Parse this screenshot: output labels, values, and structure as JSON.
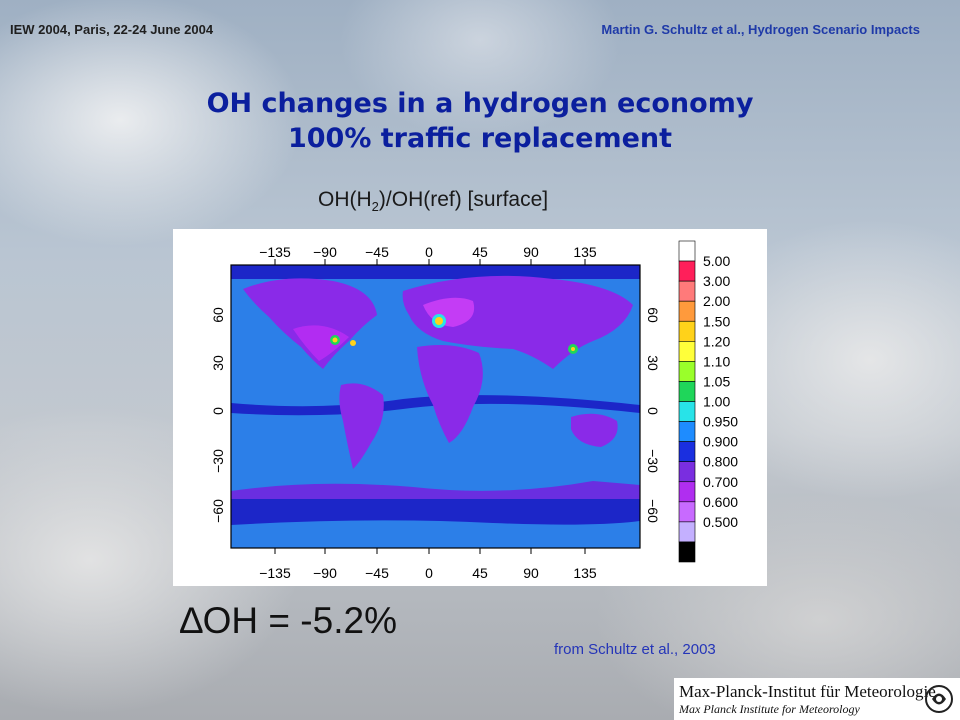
{
  "header": {
    "left": "IEW 2004, Paris, 22-24 June 2004",
    "right": "Martin G. Schultz et al., Hydrogen Scenario Impacts"
  },
  "title": {
    "line1": "OH changes in a hydrogen economy",
    "line2": "100% traffic replacement"
  },
  "subtitle": {
    "pre": "OH(H",
    "sub": "2",
    "post": ")/OH(ref)  [surface]"
  },
  "map": {
    "lon_ticks": [
      "−135",
      "−90",
      "−45",
      "0",
      "45",
      "90",
      "135"
    ],
    "lat_ticks_left": [
      "60",
      "30",
      "0",
      "−30",
      "−60"
    ],
    "lat_ticks_right": [
      "60",
      "30",
      "0",
      "−30",
      "−60"
    ]
  },
  "colorbar": {
    "labels": [
      "5.00",
      "3.00",
      "2.00",
      "1.50",
      "1.20",
      "1.10",
      "1.05",
      "1.00",
      "0.950",
      "0.900",
      "0.800",
      "0.700",
      "0.600",
      "0.500"
    ],
    "colors": [
      "#ffffff",
      "#ff1f5a",
      "#ff7a7a",
      "#ff9a3c",
      "#ffd21a",
      "#ffff3a",
      "#9aff2a",
      "#1fd65a",
      "#28e3e8",
      "#1e8cff",
      "#1a2fe0",
      "#7a2ee0",
      "#b02ef0",
      "#c86aff",
      "#c4b0ff",
      "#000000"
    ]
  },
  "delta": {
    "symbol": "∆",
    "text": "OH = -5.2%"
  },
  "source": "from Schultz et al., 2003",
  "logo": {
    "line1": "Max-Planck-Institut für Meteorologie",
    "line2": "Max Planck Institute for Meteorology"
  }
}
